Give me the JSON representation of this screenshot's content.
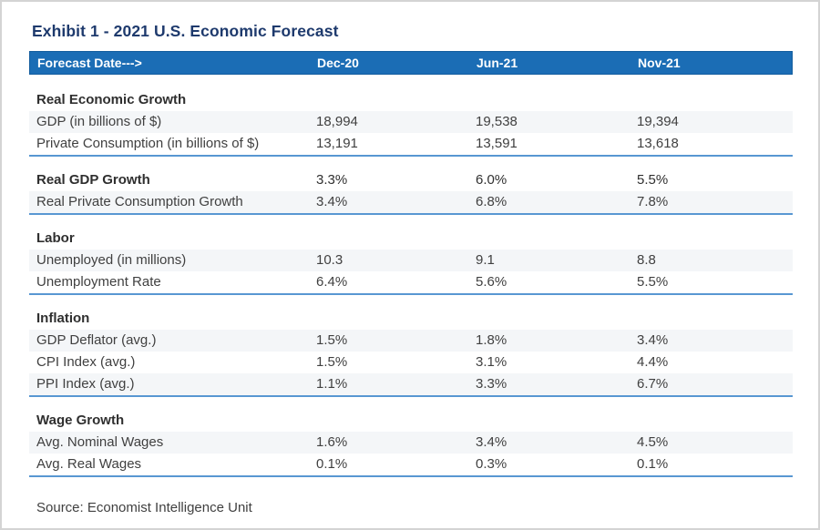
{
  "chart_data": {
    "type": "table",
    "title": "Exhibit 1 - 2021 U.S. Economic Forecast",
    "header": {
      "label": "Forecast Date--->",
      "columns": [
        "Dec-20",
        "Jun-21",
        "Nov-21"
      ]
    },
    "sections": [
      {
        "title": "Real Economic Growth",
        "rows": [
          {
            "label": "GDP (in billions of $)",
            "values": [
              "18,994",
              "19,538",
              "19,394"
            ]
          },
          {
            "label": "Private Consumption (in billions of $)",
            "values": [
              "13,191",
              "13,591",
              "13,618"
            ]
          }
        ]
      },
      {
        "title": "Real GDP Growth",
        "title_values": [
          "3.3%",
          "6.0%",
          "5.5%"
        ],
        "rows": [
          {
            "label": "Real Private Consumption Growth",
            "values": [
              "3.4%",
              "6.8%",
              "7.8%"
            ]
          }
        ]
      },
      {
        "title": "Labor",
        "rows": [
          {
            "label": "Unemployed (in millions)",
            "values": [
              "10.3",
              "9.1",
              "8.8"
            ]
          },
          {
            "label": "Unemployment Rate",
            "values": [
              "6.4%",
              "5.6%",
              "5.5%"
            ]
          }
        ]
      },
      {
        "title": "Inflation",
        "rows": [
          {
            "label": "GDP Deflator (avg.)",
            "values": [
              "1.5%",
              "1.8%",
              "3.4%"
            ]
          },
          {
            "label": "CPI Index (avg.)",
            "values": [
              "1.5%",
              "3.1%",
              "4.4%"
            ]
          },
          {
            "label": "PPI Index (avg.)",
            "values": [
              "1.1%",
              "3.3%",
              "6.7%"
            ]
          }
        ]
      },
      {
        "title": "Wage Growth",
        "rows": [
          {
            "label": "Avg. Nominal Wages",
            "values": [
              "1.6%",
              "3.4%",
              "4.5%"
            ]
          },
          {
            "label": "Avg. Real Wages",
            "values": [
              "0.1%",
              "0.3%",
              "0.1%"
            ]
          }
        ]
      }
    ],
    "source": "Source: Economist Intelligence Unit"
  },
  "colors": {
    "header_bg": "#1b6db5",
    "header_border": "#135d9e",
    "header_text": "#ffffff",
    "title_text": "#1e3a6d",
    "stripe_bg": "#f4f6f8",
    "section_divider": "#5897d2",
    "body_text": "#404040",
    "page_border": "#d4d4d4"
  }
}
